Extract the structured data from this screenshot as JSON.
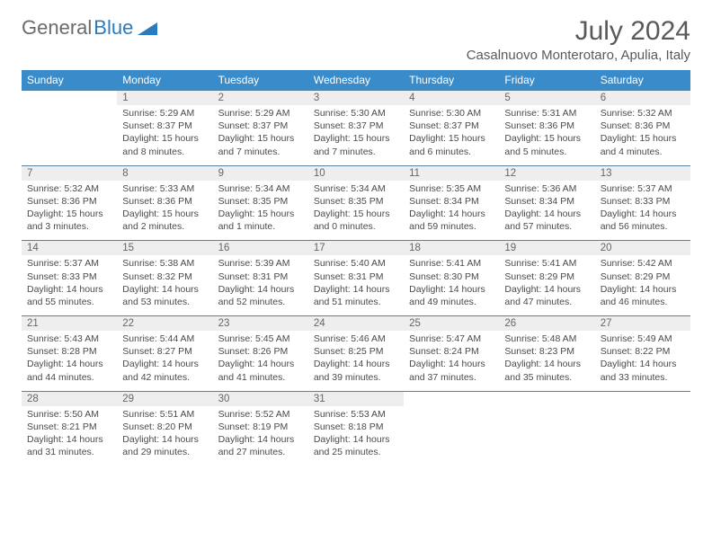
{
  "logo": {
    "text1": "General",
    "text2": "Blue"
  },
  "title": "July 2024",
  "subtitle": "Casalnuovo Monterotaro, Apulia, Italy",
  "colors": {
    "header_bg": "#3a8bc9",
    "header_text": "#ffffff",
    "daynum_bg": "#eeeeee",
    "daynum_text": "#666666",
    "body_text": "#4a4a4a",
    "title_text": "#595959",
    "logo_gray": "#6b6b6b",
    "logo_blue": "#2b7bbf",
    "row_border": "#5a829e"
  },
  "weekdays": [
    "Sunday",
    "Monday",
    "Tuesday",
    "Wednesday",
    "Thursday",
    "Friday",
    "Saturday"
  ],
  "weeks": [
    [
      {
        "n": "",
        "lines": [
          "",
          "",
          "",
          ""
        ]
      },
      {
        "n": "1",
        "lines": [
          "Sunrise: 5:29 AM",
          "Sunset: 8:37 PM",
          "Daylight: 15 hours",
          "and 8 minutes."
        ]
      },
      {
        "n": "2",
        "lines": [
          "Sunrise: 5:29 AM",
          "Sunset: 8:37 PM",
          "Daylight: 15 hours",
          "and 7 minutes."
        ]
      },
      {
        "n": "3",
        "lines": [
          "Sunrise: 5:30 AM",
          "Sunset: 8:37 PM",
          "Daylight: 15 hours",
          "and 7 minutes."
        ]
      },
      {
        "n": "4",
        "lines": [
          "Sunrise: 5:30 AM",
          "Sunset: 8:37 PM",
          "Daylight: 15 hours",
          "and 6 minutes."
        ]
      },
      {
        "n": "5",
        "lines": [
          "Sunrise: 5:31 AM",
          "Sunset: 8:36 PM",
          "Daylight: 15 hours",
          "and 5 minutes."
        ]
      },
      {
        "n": "6",
        "lines": [
          "Sunrise: 5:32 AM",
          "Sunset: 8:36 PM",
          "Daylight: 15 hours",
          "and 4 minutes."
        ]
      }
    ],
    [
      {
        "n": "7",
        "lines": [
          "Sunrise: 5:32 AM",
          "Sunset: 8:36 PM",
          "Daylight: 15 hours",
          "and 3 minutes."
        ]
      },
      {
        "n": "8",
        "lines": [
          "Sunrise: 5:33 AM",
          "Sunset: 8:36 PM",
          "Daylight: 15 hours",
          "and 2 minutes."
        ]
      },
      {
        "n": "9",
        "lines": [
          "Sunrise: 5:34 AM",
          "Sunset: 8:35 PM",
          "Daylight: 15 hours",
          "and 1 minute."
        ]
      },
      {
        "n": "10",
        "lines": [
          "Sunrise: 5:34 AM",
          "Sunset: 8:35 PM",
          "Daylight: 15 hours",
          "and 0 minutes."
        ]
      },
      {
        "n": "11",
        "lines": [
          "Sunrise: 5:35 AM",
          "Sunset: 8:34 PM",
          "Daylight: 14 hours",
          "and 59 minutes."
        ]
      },
      {
        "n": "12",
        "lines": [
          "Sunrise: 5:36 AM",
          "Sunset: 8:34 PM",
          "Daylight: 14 hours",
          "and 57 minutes."
        ]
      },
      {
        "n": "13",
        "lines": [
          "Sunrise: 5:37 AM",
          "Sunset: 8:33 PM",
          "Daylight: 14 hours",
          "and 56 minutes."
        ]
      }
    ],
    [
      {
        "n": "14",
        "lines": [
          "Sunrise: 5:37 AM",
          "Sunset: 8:33 PM",
          "Daylight: 14 hours",
          "and 55 minutes."
        ]
      },
      {
        "n": "15",
        "lines": [
          "Sunrise: 5:38 AM",
          "Sunset: 8:32 PM",
          "Daylight: 14 hours",
          "and 53 minutes."
        ]
      },
      {
        "n": "16",
        "lines": [
          "Sunrise: 5:39 AM",
          "Sunset: 8:31 PM",
          "Daylight: 14 hours",
          "and 52 minutes."
        ]
      },
      {
        "n": "17",
        "lines": [
          "Sunrise: 5:40 AM",
          "Sunset: 8:31 PM",
          "Daylight: 14 hours",
          "and 51 minutes."
        ]
      },
      {
        "n": "18",
        "lines": [
          "Sunrise: 5:41 AM",
          "Sunset: 8:30 PM",
          "Daylight: 14 hours",
          "and 49 minutes."
        ]
      },
      {
        "n": "19",
        "lines": [
          "Sunrise: 5:41 AM",
          "Sunset: 8:29 PM",
          "Daylight: 14 hours",
          "and 47 minutes."
        ]
      },
      {
        "n": "20",
        "lines": [
          "Sunrise: 5:42 AM",
          "Sunset: 8:29 PM",
          "Daylight: 14 hours",
          "and 46 minutes."
        ]
      }
    ],
    [
      {
        "n": "21",
        "lines": [
          "Sunrise: 5:43 AM",
          "Sunset: 8:28 PM",
          "Daylight: 14 hours",
          "and 44 minutes."
        ]
      },
      {
        "n": "22",
        "lines": [
          "Sunrise: 5:44 AM",
          "Sunset: 8:27 PM",
          "Daylight: 14 hours",
          "and 42 minutes."
        ]
      },
      {
        "n": "23",
        "lines": [
          "Sunrise: 5:45 AM",
          "Sunset: 8:26 PM",
          "Daylight: 14 hours",
          "and 41 minutes."
        ]
      },
      {
        "n": "24",
        "lines": [
          "Sunrise: 5:46 AM",
          "Sunset: 8:25 PM",
          "Daylight: 14 hours",
          "and 39 minutes."
        ]
      },
      {
        "n": "25",
        "lines": [
          "Sunrise: 5:47 AM",
          "Sunset: 8:24 PM",
          "Daylight: 14 hours",
          "and 37 minutes."
        ]
      },
      {
        "n": "26",
        "lines": [
          "Sunrise: 5:48 AM",
          "Sunset: 8:23 PM",
          "Daylight: 14 hours",
          "and 35 minutes."
        ]
      },
      {
        "n": "27",
        "lines": [
          "Sunrise: 5:49 AM",
          "Sunset: 8:22 PM",
          "Daylight: 14 hours",
          "and 33 minutes."
        ]
      }
    ],
    [
      {
        "n": "28",
        "lines": [
          "Sunrise: 5:50 AM",
          "Sunset: 8:21 PM",
          "Daylight: 14 hours",
          "and 31 minutes."
        ]
      },
      {
        "n": "29",
        "lines": [
          "Sunrise: 5:51 AM",
          "Sunset: 8:20 PM",
          "Daylight: 14 hours",
          "and 29 minutes."
        ]
      },
      {
        "n": "30",
        "lines": [
          "Sunrise: 5:52 AM",
          "Sunset: 8:19 PM",
          "Daylight: 14 hours",
          "and 27 minutes."
        ]
      },
      {
        "n": "31",
        "lines": [
          "Sunrise: 5:53 AM",
          "Sunset: 8:18 PM",
          "Daylight: 14 hours",
          "and 25 minutes."
        ]
      },
      {
        "n": "",
        "lines": [
          "",
          "",
          "",
          ""
        ]
      },
      {
        "n": "",
        "lines": [
          "",
          "",
          "",
          ""
        ]
      },
      {
        "n": "",
        "lines": [
          "",
          "",
          "",
          ""
        ]
      }
    ]
  ]
}
